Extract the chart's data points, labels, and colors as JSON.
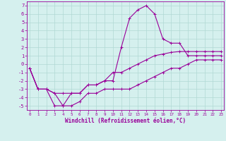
{
  "xlabel": "Windchill (Refroidissement éolien,°C)",
  "background_color": "#d5f0ee",
  "line_color": "#990099",
  "grid_color": "#b0d8d4",
  "x_hours": [
    0,
    1,
    2,
    3,
    4,
    5,
    6,
    7,
    8,
    9,
    10,
    11,
    12,
    13,
    14,
    15,
    16,
    17,
    18,
    19,
    20,
    21,
    22,
    23
  ],
  "main_line": [
    -0.5,
    -3.0,
    -3.0,
    -5.0,
    -5.0,
    -3.5,
    -3.5,
    -2.5,
    -2.5,
    -2.0,
    -2.0,
    2.0,
    5.5,
    6.5,
    7.0,
    6.0,
    3.0,
    2.5,
    2.5,
    1.0,
    1.0,
    1.0,
    1.0,
    1.0
  ],
  "upper_line": [
    -0.5,
    -3.0,
    -3.0,
    -3.5,
    -3.5,
    -3.5,
    -3.5,
    -2.5,
    -2.5,
    -2.0,
    -1.0,
    -1.0,
    -0.5,
    0.0,
    0.5,
    1.0,
    1.2,
    1.4,
    1.5,
    1.5,
    1.5,
    1.5,
    1.5,
    1.5
  ],
  "lower_line": [
    -0.5,
    -3.0,
    -3.0,
    -3.5,
    -5.0,
    -5.0,
    -4.5,
    -3.5,
    -3.5,
    -3.0,
    -3.0,
    -3.0,
    -3.0,
    -2.5,
    -2.0,
    -1.5,
    -1.0,
    -0.5,
    -0.5,
    0.0,
    0.5,
    0.5,
    0.5,
    0.5
  ],
  "ylim": [
    -5.5,
    7.5
  ],
  "yticks": [
    -5,
    -4,
    -3,
    -2,
    -1,
    0,
    1,
    2,
    3,
    4,
    5,
    6,
    7
  ],
  "xlim": [
    -0.3,
    23.3
  ],
  "xticks": [
    0,
    1,
    2,
    3,
    4,
    5,
    6,
    7,
    8,
    9,
    10,
    11,
    12,
    13,
    14,
    15,
    16,
    17,
    18,
    19,
    20,
    21,
    22,
    23
  ],
  "xlabel_fontsize": 5.5,
  "xtick_fontsize": 4.2,
  "ytick_fontsize": 5.0,
  "linewidth": 0.8,
  "markersize": 2.5
}
